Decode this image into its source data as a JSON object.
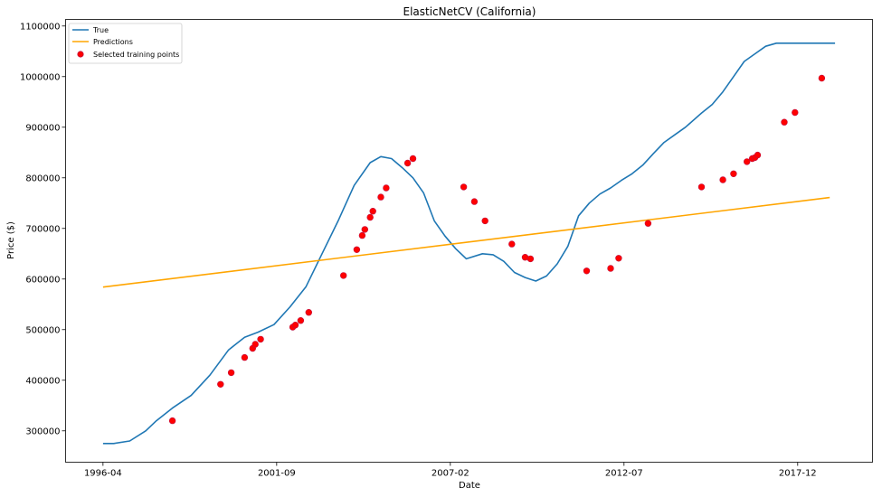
{
  "chart_data": {
    "type": "line",
    "title": "ElasticNetCV (California)",
    "xlabel": "Date",
    "ylabel": "Price ($)",
    "x_ticks": [
      "1996-04",
      "2001-09",
      "2007-02",
      "2012-07",
      "2017-12"
    ],
    "x_tick_index": [
      0,
      65,
      130,
      195,
      260
    ],
    "xlim_index": [
      -14,
      288
    ],
    "ylim": [
      238000,
      1113000
    ],
    "y_ticks": [
      300000,
      400000,
      500000,
      600000,
      700000,
      800000,
      900000,
      1000000,
      1100000
    ],
    "y_tick_labels": [
      "300000",
      "400000",
      "500000",
      "600000",
      "700000",
      "800000",
      "900000",
      "1000000",
      "1100000"
    ],
    "grid": false,
    "legend": {
      "location": "upper-left",
      "entries": [
        "True",
        "Predictions",
        "Selected training points"
      ]
    },
    "colors": {
      "true": "#1f77b4",
      "predictions": "#ffa500",
      "points": "#ff0000",
      "points_edge": "#c01040"
    },
    "series": [
      {
        "name": "True",
        "x": [
          0,
          4,
          10,
          16,
          20,
          26,
          33,
          40,
          47,
          53,
          58,
          64,
          70,
          76,
          82,
          88,
          94,
          100,
          104,
          108,
          112,
          116,
          120,
          124,
          128,
          132,
          136,
          142,
          146,
          150,
          154,
          158,
          162,
          166,
          170,
          174,
          178,
          182,
          186,
          190,
          194,
          198,
          202,
          206,
          210,
          214,
          218,
          224,
          228,
          232,
          236,
          240,
          244,
          248,
          252,
          256,
          260,
          264,
          268,
          272,
          274
        ],
        "y": [
          275000,
          275000,
          280000,
          300000,
          320000,
          345000,
          370000,
          410000,
          460000,
          485000,
          495000,
          510000,
          545000,
          585000,
          650000,
          715000,
          785000,
          830000,
          842000,
          838000,
          820000,
          800000,
          770000,
          715000,
          685000,
          660000,
          640000,
          650000,
          648000,
          635000,
          613000,
          603000,
          596000,
          606000,
          630000,
          665000,
          725000,
          750000,
          768000,
          780000,
          795000,
          808000,
          825000,
          848000,
          870000,
          885000,
          900000,
          928000,
          945000,
          970000,
          1000000,
          1030000,
          1045000,
          1060000,
          1066000,
          1066000,
          1066000,
          1066000,
          1066000,
          1066000,
          1066000
        ]
      },
      {
        "name": "Predictions",
        "x": [
          0,
          272
        ],
        "y": [
          584000,
          761000
        ]
      },
      {
        "name": "Selected training points",
        "x": [
          26,
          44,
          48,
          53,
          56,
          57,
          59,
          71,
          72,
          74,
          77,
          90,
          95,
          97,
          98,
          100,
          101,
          104,
          106,
          114,
          116,
          135,
          139,
          143,
          153,
          158,
          160,
          181,
          190,
          193,
          204,
          224,
          232,
          236,
          241,
          243,
          244,
          245,
          255,
          259,
          269
        ],
        "y": [
          320000,
          392000,
          415000,
          445000,
          463000,
          471000,
          481000,
          505000,
          509000,
          518000,
          534000,
          607000,
          658000,
          686000,
          698000,
          722000,
          734000,
          762000,
          780000,
          829000,
          838000,
          782000,
          753000,
          715000,
          669000,
          643000,
          640000,
          616000,
          621000,
          641000,
          710000,
          782000,
          796000,
          808000,
          832000,
          838000,
          840000,
          845000,
          910000,
          929000,
          997000
        ]
      }
    ]
  }
}
